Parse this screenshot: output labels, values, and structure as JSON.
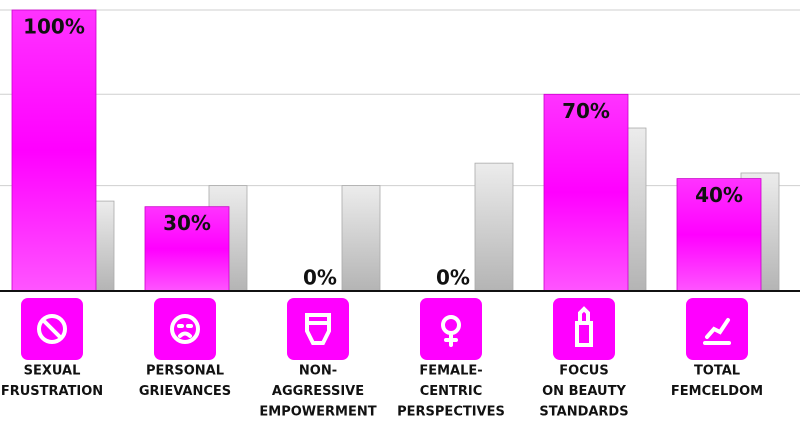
{
  "chart_data": {
    "type": "bar",
    "categories": [
      [
        "SEXUAL",
        "FRUSTRATION"
      ],
      [
        "PERSONAL",
        "GRIEVANCES"
      ],
      [
        "NON-",
        "AGGRESSIVE",
        "EMPOWERMENT"
      ],
      [
        "FEMALE-",
        "CENTRIC",
        "PERSPECTIVES"
      ],
      [
        "FOCUS",
        "ON BEAUTY",
        "STANDARDS"
      ],
      [
        "TOTAL",
        "FEMCELDOM"
      ]
    ],
    "series": [
      {
        "color": "#ff00ff",
        "values": [
          100,
          30,
          0,
          0,
          70,
          40
        ],
        "value_labels": [
          "100%",
          "30%",
          "0%",
          "0%",
          "70%",
          "40%"
        ]
      },
      {
        "color": "#c4c4c4",
        "values": [
          32,
          37.5,
          37.5,
          45.5,
          58,
          42
        ]
      }
    ],
    "ylim": [
      0,
      100
    ],
    "gridlines": [
      37.5,
      70,
      100
    ],
    "grid": true
  }
}
